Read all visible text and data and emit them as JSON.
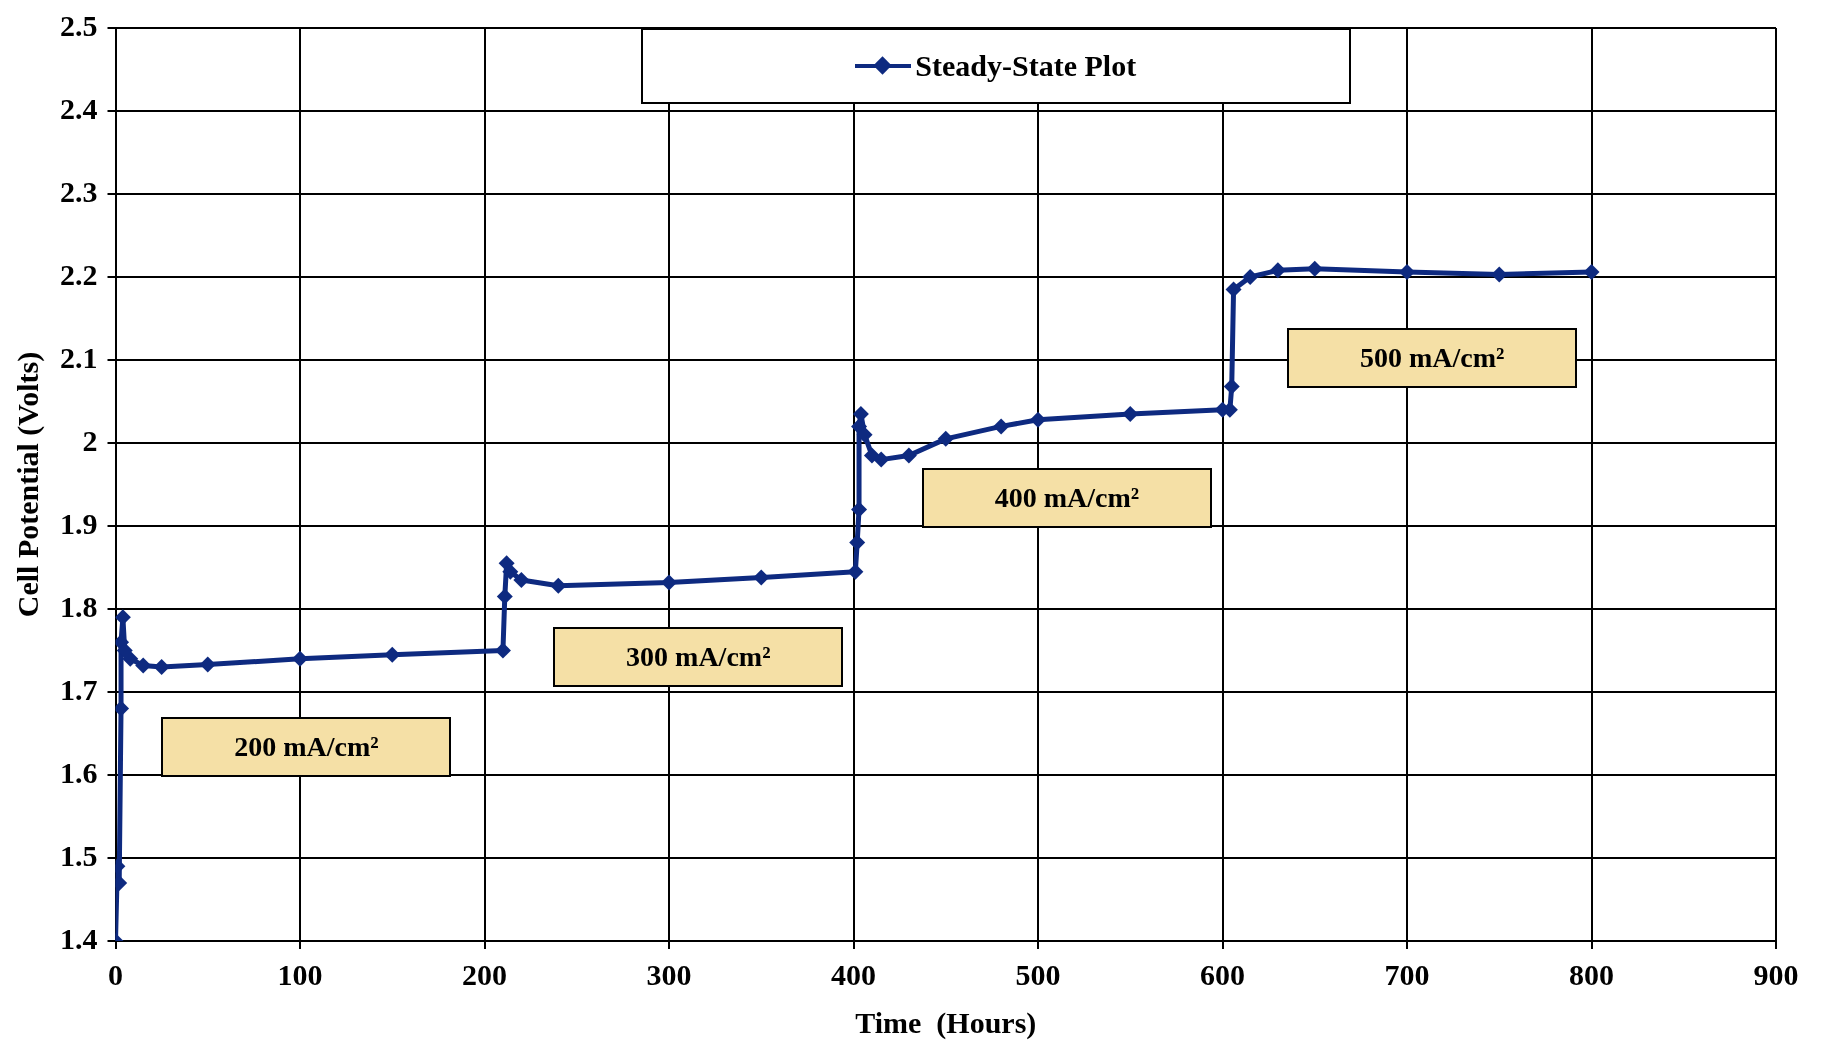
{
  "chart_data": {
    "type": "line",
    "xlabel": "Time  (Hours)",
    "ylabel": "Cell Potential (Volts)",
    "xlim": [
      0,
      900
    ],
    "xticks": [
      0,
      100,
      200,
      300,
      400,
      500,
      600,
      700,
      800,
      900
    ],
    "ylim": [
      1.4,
      2.5
    ],
    "yticks": [
      1.4,
      1.5,
      1.6,
      1.7,
      1.8,
      1.9,
      2,
      2.1,
      2.2,
      2.3,
      2.4,
      2.5
    ],
    "grid": true,
    "legend": "top",
    "marker": "diamond",
    "line_style": "solid",
    "series": [
      {
        "name": "Steady-State Plot",
        "color": "#0e2a80",
        "x": [
          0,
          1,
          2,
          3,
          3,
          4,
          5,
          8,
          15,
          25,
          50,
          100,
          150,
          210,
          211,
          212,
          214,
          220,
          240,
          300,
          350,
          401,
          402,
          403,
          403,
          404,
          406,
          410,
          415,
          430,
          450,
          480,
          500,
          550,
          600,
          604,
          605,
          606,
          615,
          630,
          650,
          700,
          750,
          800
        ],
        "values": [
          1.4,
          1.49,
          1.47,
          1.68,
          1.76,
          1.79,
          1.75,
          1.74,
          1.732,
          1.73,
          1.733,
          1.74,
          1.745,
          1.75,
          1.815,
          1.855,
          1.845,
          1.835,
          1.828,
          1.832,
          1.838,
          1.845,
          1.88,
          1.92,
          2.02,
          2.035,
          2.01,
          1.985,
          1.98,
          1.985,
          2.005,
          2.02,
          2.028,
          2.035,
          2.04,
          2.04,
          2.068,
          2.185,
          2.2,
          2.208,
          2.21,
          2.206,
          2.203,
          2.206
        ]
      }
    ],
    "annotations": [
      "200 mA/cm²",
      "300 mA/cm²",
      "400 mA/cm²",
      "500 mA/cm²"
    ]
  }
}
